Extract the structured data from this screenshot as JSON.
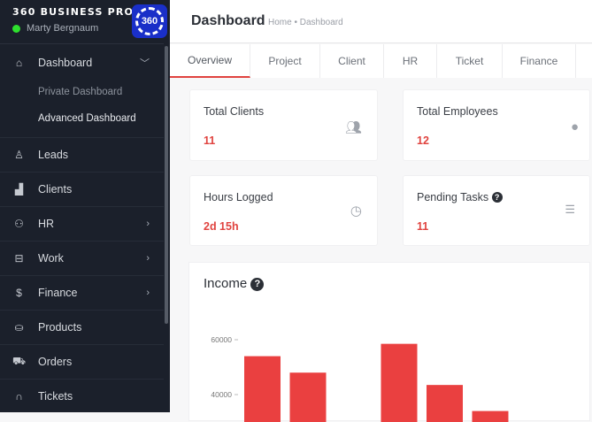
{
  "sidebar": {
    "brand": "360 BUSINESS PRO",
    "user": "Marty Bergnaum",
    "logo_text": "360",
    "items": [
      {
        "label": "Dashboard",
        "icon": "home-icon",
        "expanded": true
      },
      {
        "label": "Leads",
        "icon": "user-icon"
      },
      {
        "label": "Clients",
        "icon": "building-icon"
      },
      {
        "label": "HR",
        "icon": "users-icon",
        "has_children": true
      },
      {
        "label": "Work",
        "icon": "briefcase-icon",
        "has_children": true
      },
      {
        "label": "Finance",
        "icon": "dollar-icon",
        "has_children": true
      },
      {
        "label": "Products",
        "icon": "basket-icon"
      },
      {
        "label": "Orders",
        "icon": "cart-icon"
      },
      {
        "label": "Tickets",
        "icon": "headset-icon"
      }
    ],
    "submenu": [
      "Private Dashboard",
      "Advanced Dashboard"
    ]
  },
  "header": {
    "title": "Dashboard",
    "breadcrumb": "Home • Dashboard"
  },
  "tabs": [
    "Overview",
    "Project",
    "Client",
    "HR",
    "Ticket",
    "Finance"
  ],
  "active_tab": "Overview",
  "cards": [
    {
      "label": "Total Clients",
      "value": "11",
      "icon": "users-icon"
    },
    {
      "label": "Total Employees",
      "value": "12",
      "icon": "user-icon"
    },
    {
      "label": "Hours Logged",
      "value": "2d 15h",
      "icon": "clock-icon"
    },
    {
      "label": "Pending Tasks",
      "value": "11",
      "icon": "tasks-icon"
    }
  ],
  "colors": {
    "accent": "#e0433f",
    "sidebar": "#1b202b"
  },
  "chart_data": {
    "type": "bar",
    "title": "Income",
    "yticks": [
      "60000",
      "40000"
    ],
    "values": [
      54000,
      48000,
      null,
      58500,
      43500,
      34000
    ],
    "color": "#ea4040"
  }
}
